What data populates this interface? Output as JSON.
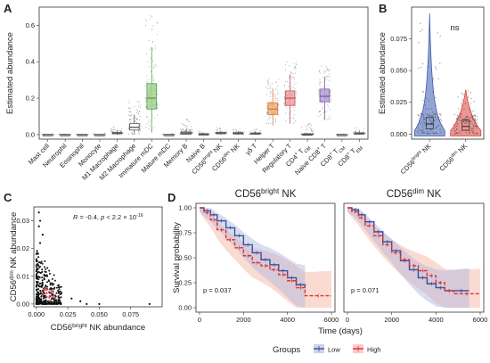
{
  "chart_data": [
    {
      "panel": "A",
      "type": "box",
      "ylabel": "Estimated abundance",
      "ylim": [
        0,
        0.7
      ],
      "y_ticks": [
        0.0,
        0.2,
        0.4,
        0.6
      ],
      "y_tick_labels": [
        "0.0",
        "0.2",
        "0.4",
        "0.6"
      ],
      "categories": [
        {
          "label": "Mast cell",
          "q1": 0,
          "median": 0,
          "q3": 0,
          "lo": 0,
          "hi": 0.002,
          "max": 0.004,
          "color": "#555555"
        },
        {
          "label": "Neutrophil",
          "q1": 0,
          "median": 0,
          "q3": 0,
          "lo": 0,
          "hi": 0.002,
          "max": 0.003,
          "color": "#555555"
        },
        {
          "label": "Eosinophil",
          "q1": 0,
          "median": 0,
          "q3": 0,
          "lo": 0,
          "hi": 0.001,
          "max": 0.002,
          "color": "#555555"
        },
        {
          "label": "Monocyte",
          "q1": 0,
          "median": 0,
          "q3": 0,
          "lo": 0,
          "hi": 0.002,
          "max": 0.01,
          "color": "#555555"
        },
        {
          "label": "M1 Macrophage",
          "q1": 0.004,
          "median": 0.008,
          "q3": 0.012,
          "lo": 0,
          "hi": 0.025,
          "max": 0.045,
          "color": "#555555"
        },
        {
          "label": "M2 Macrophage",
          "q1": 0.025,
          "median": 0.04,
          "q3": 0.06,
          "lo": 0,
          "hi": 0.11,
          "max": 0.19,
          "color": "#555555"
        },
        {
          "label": "Immature mDC",
          "q1": 0.14,
          "median": 0.2,
          "q3": 0.28,
          "lo": 0.01,
          "hi": 0.48,
          "max": 0.66,
          "color": "#5aa34f",
          "fill": "#9fd18c"
        },
        {
          "label": "Mature mDC",
          "q1": 0,
          "median": 0,
          "q3": 0,
          "lo": 0,
          "hi": 0.002,
          "max": 0.004,
          "color": "#555555"
        },
        {
          "label": "Memory B",
          "q1": 0.003,
          "median": 0.008,
          "q3": 0.014,
          "lo": 0,
          "hi": 0.03,
          "max": 0.09,
          "color": "#555555"
        },
        {
          "label": "Naive B",
          "q1": 0,
          "median": 0.002,
          "q3": 0.004,
          "lo": 0,
          "hi": 0.008,
          "max": 0.02,
          "color": "#555555"
        },
        {
          "label": "CD56bright NK",
          "q1": 0.004,
          "median": 0.008,
          "q3": 0.012,
          "lo": 0,
          "hi": 0.022,
          "max": 0.04,
          "color": "#555555"
        },
        {
          "label": "CD56dim NK",
          "q1": 0.003,
          "median": 0.007,
          "q3": 0.011,
          "lo": 0,
          "hi": 0.02,
          "max": 0.035,
          "color": "#555555"
        },
        {
          "label": "γδ T",
          "q1": 0.002,
          "median": 0.005,
          "q3": 0.009,
          "lo": 0,
          "hi": 0.018,
          "max": 0.03,
          "color": "#555555"
        },
        {
          "label": "Helper T",
          "q1": 0.11,
          "median": 0.14,
          "q3": 0.175,
          "lo": 0.05,
          "hi": 0.25,
          "max": 0.31,
          "color": "#d97a2b",
          "fill": "#f2b27a"
        },
        {
          "label": "Regulatory T",
          "q1": 0.16,
          "median": 0.2,
          "q3": 0.24,
          "lo": 0.06,
          "hi": 0.33,
          "max": 0.4,
          "color": "#c2545e",
          "fill": "#f0a0a5"
        },
        {
          "label": "CD4+ TCM",
          "q1": 0,
          "median": 0,
          "q3": 0.003,
          "lo": 0,
          "hi": 0.008,
          "max": 0.06,
          "color": "#555555"
        },
        {
          "label": "Naive CD8+ T",
          "q1": 0.18,
          "median": 0.21,
          "q3": 0.25,
          "lo": 0.08,
          "hi": 0.32,
          "max": 0.38,
          "color": "#7b5ca8",
          "fill": "#b7a0dc"
        },
        {
          "label": "CD8+ TCM",
          "q1": 0,
          "median": 0,
          "q3": 0,
          "lo": 0,
          "hi": 0.002,
          "max": 0.004,
          "color": "#555555"
        },
        {
          "label": "CD8+ TEM",
          "q1": 0.002,
          "median": 0.006,
          "q3": 0.01,
          "lo": 0,
          "hi": 0.02,
          "max": 0.04,
          "color": "#555555"
        }
      ]
    },
    {
      "panel": "B",
      "type": "violin",
      "ylabel": "Estimated abundance",
      "ylim": [
        0,
        0.1
      ],
      "y_ticks": [
        0.0,
        0.025,
        0.05,
        0.075
      ],
      "y_tick_labels": [
        "0.000",
        "0.025",
        "0.050",
        "0.075"
      ],
      "annotation": "ns",
      "groups": [
        {
          "label": "CD56bright NK",
          "median": 0.008,
          "q1": 0.004,
          "q3": 0.013,
          "max": 0.095,
          "color": "#3b5bb0"
        },
        {
          "label": "CD56dim NK",
          "median": 0.006,
          "q1": 0.003,
          "q3": 0.011,
          "max": 0.035,
          "color": "#d9403a"
        }
      ]
    },
    {
      "panel": "C",
      "type": "scatter",
      "xlabel": "CD56bright NK abundance",
      "ylabel": "CD56dim NK abundance",
      "xlim": [
        -0.002,
        0.1
      ],
      "ylim": [
        -0.001,
        0.035
      ],
      "x_ticks": [
        0.0,
        0.025,
        0.05,
        0.075
      ],
      "x_tick_labels": [
        "0.000",
        "0.025",
        "0.050",
        "0.075"
      ],
      "y_ticks": [
        0.0,
        0.01,
        0.02,
        0.03
      ],
      "y_tick_labels": [
        "0.00",
        "0.01",
        "0.02",
        "0.03"
      ],
      "annotation": "R = -0.4, p < 2.2 × 10⁻¹⁶",
      "outliers": [
        [
          0.002,
          0.033
        ],
        [
          0.003,
          0.03
        ],
        [
          0.002,
          0.028
        ],
        [
          0.005,
          0.025
        ],
        [
          0.003,
          0.022
        ],
        [
          0.02,
          0.004
        ],
        [
          0.028,
          0.002
        ],
        [
          0.035,
          0.001
        ],
        [
          0.04,
          0.0
        ],
        [
          0.05,
          0.0
        ],
        [
          0.09,
          0.0
        ]
      ]
    },
    {
      "panel": "D",
      "type": "survival",
      "xlabel": "Time (days)",
      "ylabel": "Survival probability",
      "xlim": [
        0,
        6000
      ],
      "ylim": [
        0,
        1
      ],
      "x_ticks": [
        0,
        2000,
        4000,
        6000
      ],
      "y_ticks": [
        0,
        0.25,
        0.5,
        0.75,
        1
      ],
      "y_tick_labels": [
        "0.00",
        "0.25",
        "0.50",
        "0.75",
        "1.00"
      ],
      "legend": {
        "title": "Groups",
        "items": [
          {
            "label": "Low",
            "color": "#3b4fa0"
          },
          {
            "label": "High",
            "color": "#e0332b"
          }
        ]
      },
      "plots": [
        {
          "title": "CD56bright NK",
          "pvalue": "p = 0.037",
          "low": {
            "x": [
              0,
              200,
              500,
              800,
              1200,
              1600,
              2000,
              2400,
              2800,
              3200,
              3600,
              4000,
              4400,
              4800
            ],
            "y": [
              1.0,
              0.97,
              0.93,
              0.87,
              0.8,
              0.72,
              0.63,
              0.55,
              0.48,
              0.43,
              0.37,
              0.3,
              0.23,
              0.2
            ]
          },
          "high": {
            "x": [
              0,
              200,
              500,
              800,
              1200,
              1600,
              2000,
              2400,
              2800,
              3200,
              3600,
              4000,
              4400,
              4800,
              6000
            ],
            "y": [
              1.0,
              0.95,
              0.88,
              0.78,
              0.68,
              0.6,
              0.52,
              0.45,
              0.42,
              0.38,
              0.33,
              0.27,
              0.2,
              0.12,
              0.12
            ]
          }
        },
        {
          "title": "CD56dim NK",
          "pvalue": "p = 0.071",
          "low": {
            "x": [
              0,
              200,
              500,
              800,
              1200,
              1600,
              2000,
              2400,
              2800,
              3200,
              3600,
              4000,
              4400,
              4800,
              5500
            ],
            "y": [
              1.0,
              0.98,
              0.93,
              0.86,
              0.76,
              0.66,
              0.57,
              0.47,
              0.38,
              0.3,
              0.24,
              0.2,
              0.17,
              0.17,
              0.17
            ]
          },
          "high": {
            "x": [
              0,
              200,
              500,
              800,
              1200,
              1600,
              2000,
              2400,
              2800,
              3200,
              3600,
              4000,
              4400,
              4800,
              6000
            ],
            "y": [
              1.0,
              0.96,
              0.9,
              0.82,
              0.72,
              0.63,
              0.55,
              0.48,
              0.42,
              0.37,
              0.32,
              0.25,
              0.17,
              0.14,
              0.14
            ]
          }
        }
      ]
    }
  ]
}
